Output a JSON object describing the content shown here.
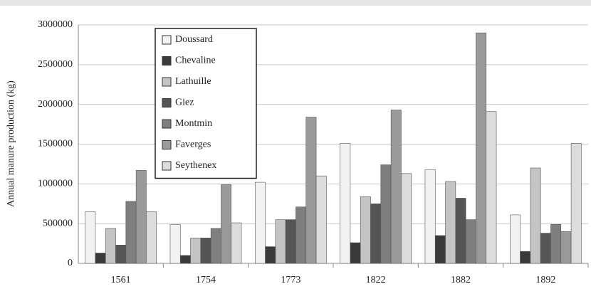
{
  "chart_data": {
    "type": "bar",
    "y_label": "Annual manure production (kg)",
    "categories": [
      "1561",
      "1754",
      "1773",
      "1822",
      "1882",
      "1892"
    ],
    "series": [
      {
        "name": "Doussard",
        "color": "#f2f2f2",
        "values": [
          650000,
          490000,
          1020000,
          1510000,
          1180000,
          610000
        ]
      },
      {
        "name": "Chevaline",
        "color": "#3a3a3a",
        "values": [
          130000,
          100000,
          210000,
          260000,
          350000,
          150000
        ]
      },
      {
        "name": "Lathuille",
        "color": "#c4c4c4",
        "values": [
          440000,
          320000,
          550000,
          840000,
          1030000,
          1200000
        ]
      },
      {
        "name": "Giez",
        "color": "#555555",
        "values": [
          230000,
          320000,
          550000,
          750000,
          820000,
          380000
        ]
      },
      {
        "name": "Montmin",
        "color": "#7f7f7f",
        "values": [
          780000,
          440000,
          710000,
          1240000,
          550000,
          490000
        ]
      },
      {
        "name": "Faverges",
        "color": "#9a9a9a",
        "values": [
          1170000,
          990000,
          1840000,
          1930000,
          2900000,
          400000
        ]
      },
      {
        "name": "Seythenex",
        "color": "#dcdcdc",
        "values": [
          650000,
          510000,
          1100000,
          1130000,
          1910000,
          1510000
        ]
      }
    ],
    "ylim": [
      0,
      3000000
    ],
    "yticks": [
      0,
      500000,
      1000000,
      1500000,
      2000000,
      2500000,
      3000000
    ],
    "grid": true
  }
}
